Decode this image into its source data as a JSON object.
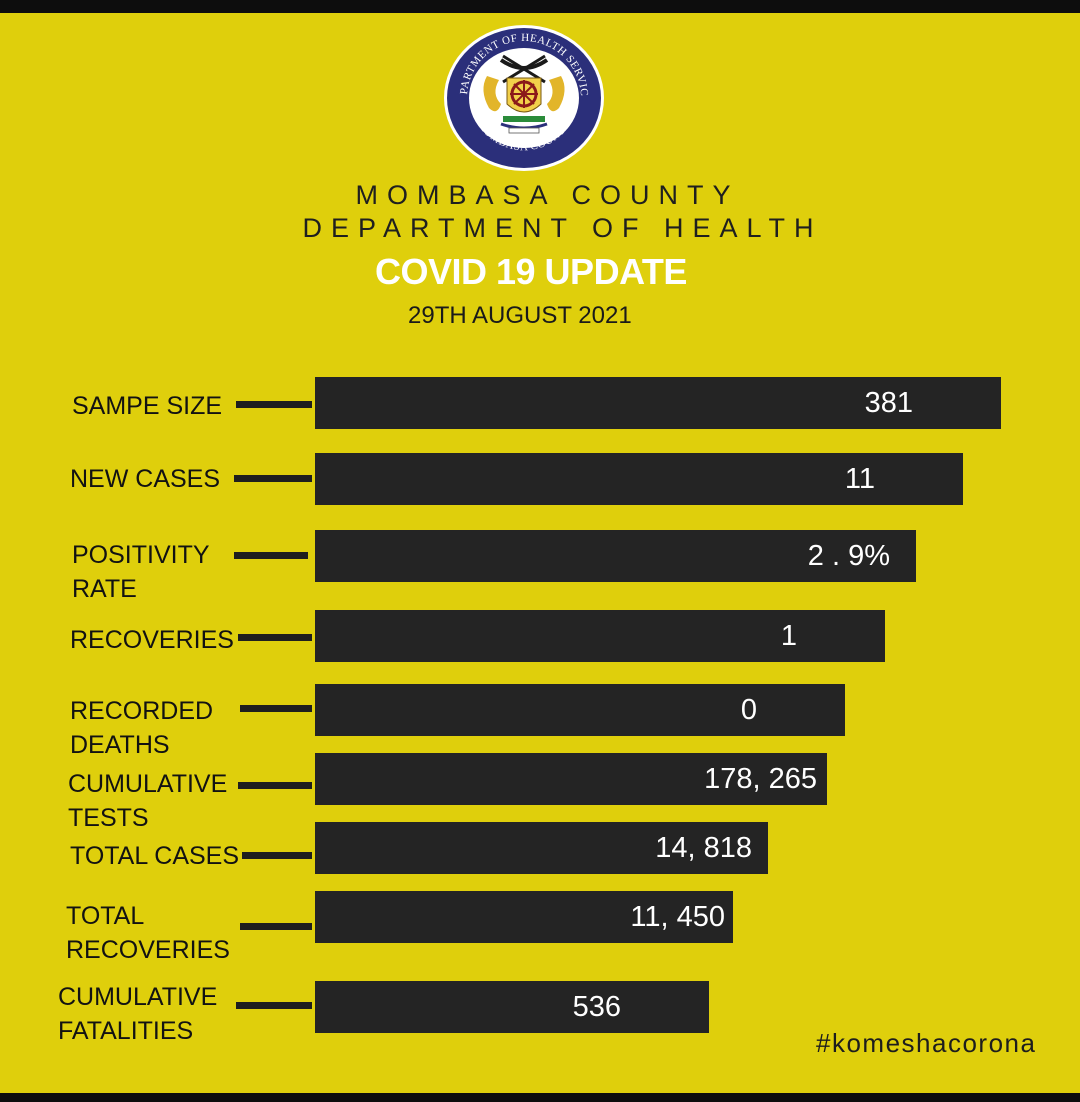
{
  "header": {
    "seal": {
      "top_text": "DEPARTMENT OF HEALTH SERVICES",
      "bottom_text": "MOMBASA COUNTY"
    },
    "org_line_1": "MOMBASA COUNTY",
    "org_line_2": "DEPARTMENT OF HEALTH",
    "title": "COVID 19 UPDATE",
    "date": "29TH AUGUST 2021"
  },
  "stats": [
    {
      "label_lines": [
        "SAMPE SIZE"
      ],
      "value": "381"
    },
    {
      "label_lines": [
        "NEW CASES"
      ],
      "value": "11"
    },
    {
      "label_lines": [
        "POSITIVITY",
        "RATE"
      ],
      "value": "2 . 9%"
    },
    {
      "label_lines": [
        "RECOVERIES"
      ],
      "value": "1"
    },
    {
      "label_lines": [
        "RECORDED",
        "DEATHS"
      ],
      "value": "0"
    },
    {
      "label_lines": [
        "CUMULATIVE",
        "TESTS"
      ],
      "value": "178, 265"
    },
    {
      "label_lines": [
        "TOTAL CASES"
      ],
      "value": "14, 818"
    },
    {
      "label_lines": [
        "TOTAL",
        "RECOVERIES"
      ],
      "value": "11, 450"
    },
    {
      "label_lines": [
        "CUMULATIVE",
        "FATALITIES"
      ],
      "value": "536"
    }
  ],
  "footer": {
    "hashtag": "#komeshacorona"
  },
  "colors": {
    "background": "#dfcf0c",
    "bar": "#242424",
    "title": "#ffffff",
    "text": "#121212"
  }
}
